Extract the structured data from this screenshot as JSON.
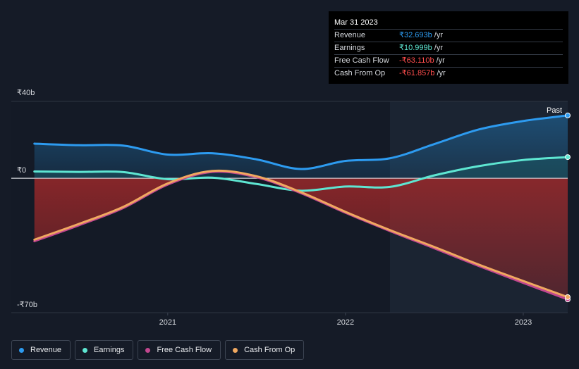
{
  "tooltip": {
    "date": "Mar 31 2023",
    "rows": [
      {
        "label": "Revenue",
        "value": "₹32.693b",
        "unit": "/yr",
        "color": "#2d9bf0"
      },
      {
        "label": "Earnings",
        "value": "₹10.999b",
        "unit": "/yr",
        "color": "#5ee6d2"
      },
      {
        "label": "Free Cash Flow",
        "value": "-₹63.110b",
        "unit": "/yr",
        "color": "#ff4d4d"
      },
      {
        "label": "Cash From Op",
        "value": "-₹61.857b",
        "unit": "/yr",
        "color": "#ff4d4d"
      }
    ]
  },
  "legend": [
    {
      "label": "Revenue",
      "color": "#2d9bf0"
    },
    {
      "label": "Earnings",
      "color": "#5ee6d2"
    },
    {
      "label": "Free Cash Flow",
      "color": "#c2478f"
    },
    {
      "label": "Cash From Op",
      "color": "#f0a860"
    }
  ],
  "chart_data": {
    "type": "line",
    "title": "",
    "xlabel": "",
    "ylabel": "",
    "ylim": [
      -70,
      40
    ],
    "y_tick_labels": [
      "₹40b",
      "₹0",
      "-₹70b"
    ],
    "y_ticks": [
      40,
      0,
      -70
    ],
    "x_tick_labels": [
      "2021",
      "2022",
      "2023"
    ],
    "x_ticks": [
      2021.0,
      2022.0,
      2023.0
    ],
    "xlim": [
      2020.12,
      2023.25
    ],
    "past_label": "Past",
    "past_start": 2022.25,
    "series": [
      {
        "name": "Revenue",
        "color": "#2d9bf0",
        "x": [
          2020.25,
          2020.5,
          2020.75,
          2021.0,
          2021.25,
          2021.5,
          2021.75,
          2022.0,
          2022.25,
          2022.5,
          2022.75,
          2023.0,
          2023.25
        ],
        "y": [
          18,
          17.2,
          17,
          12.3,
          13,
          9.8,
          4.8,
          9,
          10.4,
          17.8,
          25.4,
          29.8,
          32.7
        ]
      },
      {
        "name": "Earnings",
        "color": "#5ee6d2",
        "x": [
          2020.25,
          2020.5,
          2020.75,
          2021.0,
          2021.25,
          2021.5,
          2021.75,
          2022.0,
          2022.25,
          2022.5,
          2022.75,
          2023.0,
          2023.25
        ],
        "y": [
          3.5,
          3.3,
          3.2,
          -0.5,
          0.3,
          -3,
          -6.5,
          -4.3,
          -4.5,
          1.5,
          6.3,
          9.5,
          11
        ]
      },
      {
        "name": "Free Cash Flow",
        "color": "#c2478f",
        "x": [
          2020.25,
          2020.5,
          2020.75,
          2021.0,
          2021.25,
          2021.5,
          2021.75,
          2022.0,
          2022.25,
          2022.5,
          2022.75,
          2023.0,
          2023.25
        ],
        "y": [
          -32.8,
          -24.5,
          -15.5,
          -3.3,
          3.3,
          0.5,
          -7.8,
          -18,
          -27.5,
          -36.5,
          -45.7,
          -54.5,
          -63.1
        ]
      },
      {
        "name": "Cash From Op",
        "color": "#f0a860",
        "x": [
          2020.25,
          2020.5,
          2020.75,
          2021.0,
          2021.25,
          2021.5,
          2021.75,
          2022.0,
          2022.25,
          2022.5,
          2022.75,
          2023.0,
          2023.25
        ],
        "y": [
          -32,
          -23.8,
          -14.9,
          -2.7,
          3.8,
          1,
          -7.3,
          -17.5,
          -27,
          -35.8,
          -45,
          -53.5,
          -61.9
        ]
      }
    ]
  }
}
